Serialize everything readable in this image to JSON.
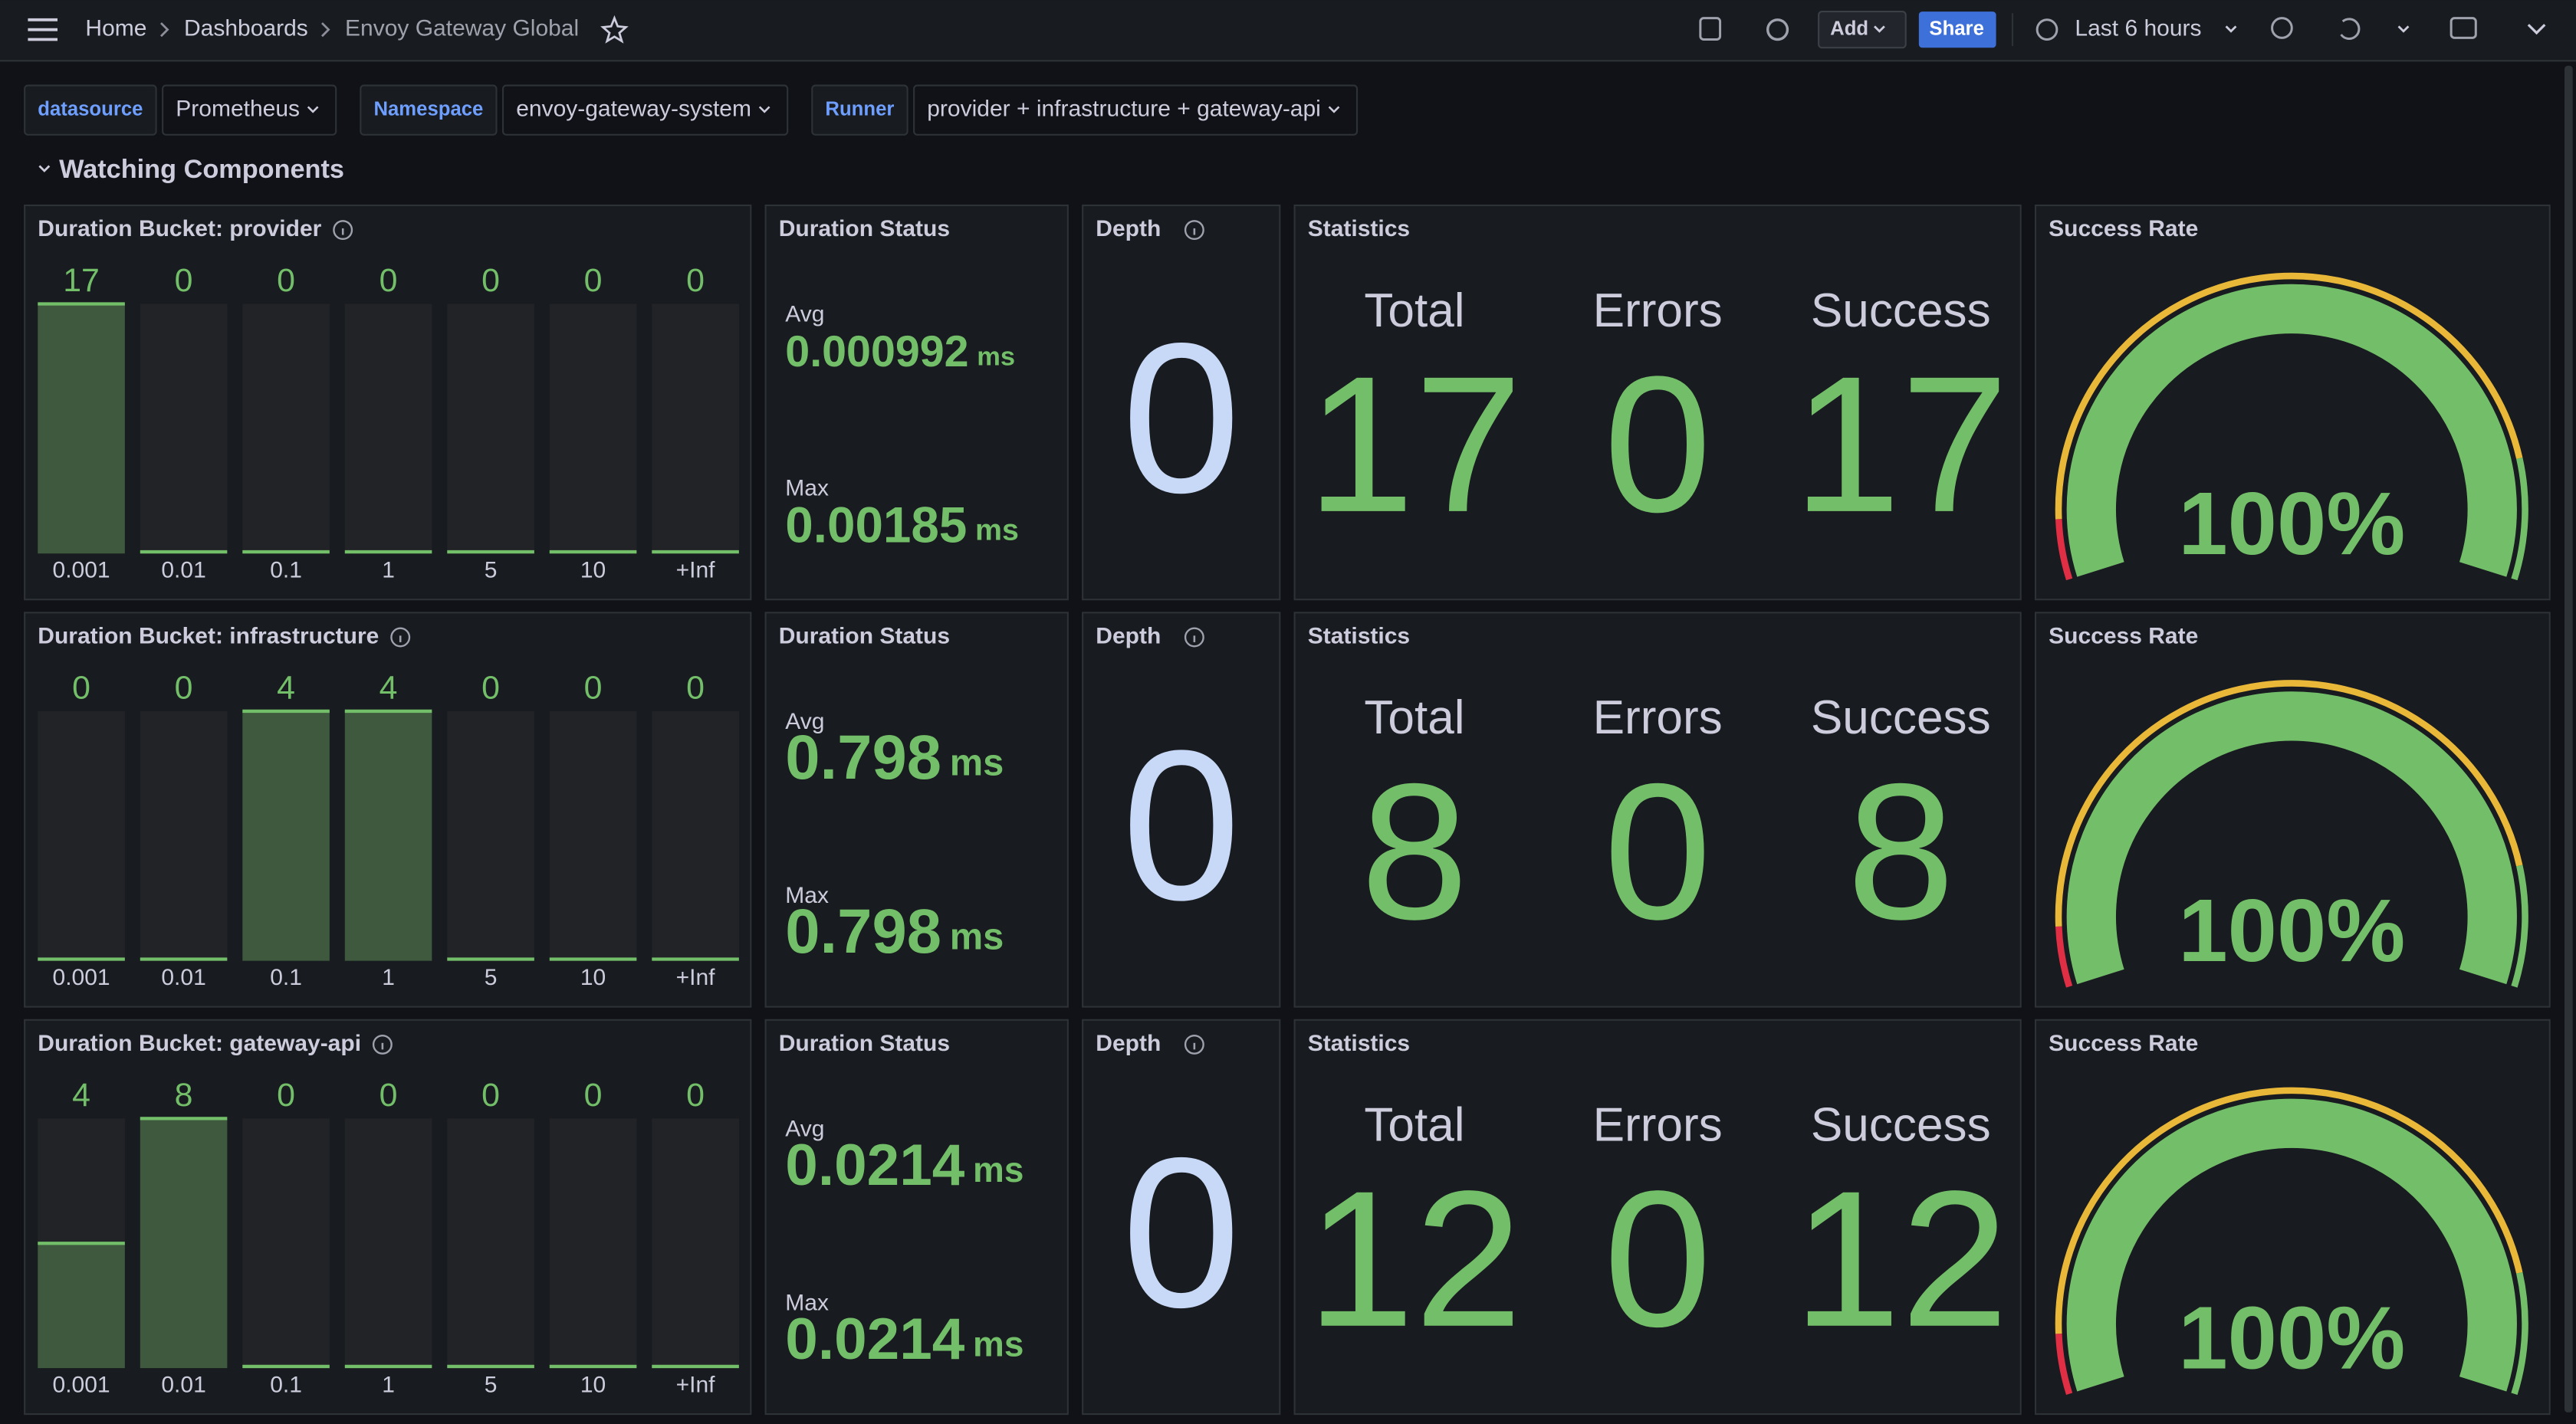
{
  "nav": {
    "breadcrumbs": [
      "Home",
      "Dashboards",
      "Envoy Gateway Global"
    ],
    "add": "Add",
    "share": "Share",
    "time_range": "Last 6 hours"
  },
  "variables": [
    {
      "label": "datasource",
      "value": "Prometheus"
    },
    {
      "label": "Namespace",
      "value": "envoy-gateway-system"
    },
    {
      "label": "Runner",
      "value": "provider + infrastructure + gateway-api"
    }
  ],
  "section": "Watching Components",
  "panel_titles": {
    "duration_status": "Duration Status",
    "depth": "Depth",
    "statistics": "Statistics",
    "success_rate": "Success Rate"
  },
  "stat_labels": {
    "avg": "Avg",
    "max": "Max",
    "total": "Total",
    "errors": "Errors",
    "success": "Success"
  },
  "bucket_labels": [
    "0.001",
    "0.01",
    "0.1",
    "1",
    "5",
    "10",
    "+Inf"
  ],
  "rows": [
    {
      "bucket_title": "Duration Bucket: provider",
      "buckets": [
        17,
        0,
        0,
        0,
        0,
        0,
        0
      ],
      "avg": 0.000992,
      "max": 0.00185,
      "unit": "ms",
      "depth": 0,
      "total": 17,
      "errors": 0,
      "success": 17,
      "success_rate": {
        "value": 100,
        "label": "100%"
      }
    },
    {
      "bucket_title": "Duration Bucket: infrastructure",
      "buckets": [
        0,
        0,
        4,
        4,
        0,
        0,
        0
      ],
      "avg": 0.798,
      "max": 0.798,
      "unit": "ms",
      "depth": 0,
      "total": 8,
      "errors": 0,
      "success": 8,
      "success_rate": {
        "value": 100,
        "label": "100%"
      }
    },
    {
      "bucket_title": "Duration Bucket: gateway-api",
      "buckets": [
        4,
        8,
        0,
        0,
        0,
        0,
        0
      ],
      "avg": 0.0214,
      "max": 0.0214,
      "unit": "ms",
      "depth": 0,
      "total": 12,
      "errors": 0,
      "success": 12,
      "success_rate": {
        "value": 100,
        "label": "100%"
      }
    }
  ]
}
